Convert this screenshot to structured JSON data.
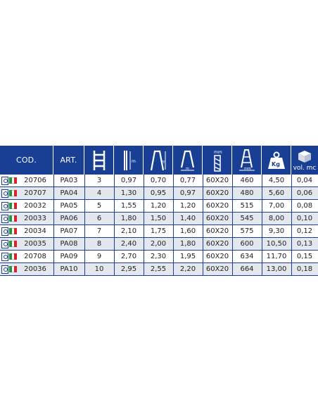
{
  "header": {
    "cod_label": "COD.",
    "art_label": "ART.",
    "weight_unit": "Kg",
    "vol_label": "vol. mc",
    "icons": [
      "steps-icon",
      "closed-height-icon",
      "open-height-icon",
      "working-height-icon",
      "base-width-icon",
      "profile-section-icon",
      "base-depth-icon",
      "weight-icon",
      "volume-icon"
    ]
  },
  "colors": {
    "header_bg": "#183f93",
    "alt_row": "#e4e7ee",
    "flag_green": "#1e9a3c",
    "flag_red": "#d8232a"
  },
  "rows": [
    {
      "cod": "20706",
      "art": "PA03",
      "steps": "3",
      "h1": "0,97",
      "h2": "0,70",
      "h3": "0,77",
      "profile": "60X20",
      "depth": "460",
      "weight": "4,50",
      "vol": "0,04"
    },
    {
      "cod": "20707",
      "art": "PA04",
      "steps": "4",
      "h1": "1,30",
      "h2": "0,95",
      "h3": "0,97",
      "profile": "60X20",
      "depth": "480",
      "weight": "5,60",
      "vol": "0,06"
    },
    {
      "cod": "20032",
      "art": "PA05",
      "steps": "5",
      "h1": "1,55",
      "h2": "1,20",
      "h3": "1,20",
      "profile": "60X20",
      "depth": "515",
      "weight": "7,00",
      "vol": "0,08"
    },
    {
      "cod": "20033",
      "art": "PA06",
      "steps": "6",
      "h1": "1,80",
      "h2": "1,50",
      "h3": "1,40",
      "profile": "60X20",
      "depth": "545",
      "weight": "8,00",
      "vol": "0,10"
    },
    {
      "cod": "20034",
      "art": "PA07",
      "steps": "7",
      "h1": "2,10",
      "h2": "1,75",
      "h3": "1,60",
      "profile": "60X20",
      "depth": "575",
      "weight": "9,30",
      "vol": "0,12"
    },
    {
      "cod": "20035",
      "art": "PA08",
      "steps": "8",
      "h1": "2,40",
      "h2": "2,00",
      "h3": "1,80",
      "profile": "60X20",
      "depth": "600",
      "weight": "10,50",
      "vol": "0,13"
    },
    {
      "cod": "20708",
      "art": "PA09",
      "steps": "9",
      "h1": "2,70",
      "h2": "2,30",
      "h3": "1,95",
      "profile": "60X20",
      "depth": "634",
      "weight": "11,70",
      "vol": "0,15"
    },
    {
      "cod": "20036",
      "art": "PA10",
      "steps": "10",
      "h1": "2,95",
      "h2": "2,55",
      "h3": "2,20",
      "profile": "60X20",
      "depth": "664",
      "weight": "13,00",
      "vol": "0,18"
    }
  ]
}
